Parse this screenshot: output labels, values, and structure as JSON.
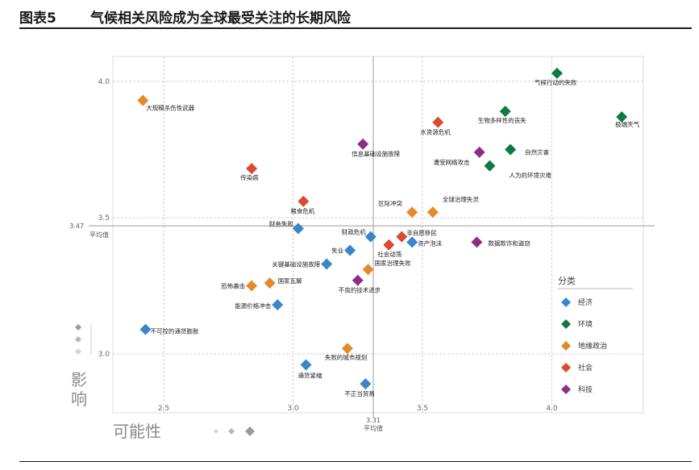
{
  "header": {
    "figure_no": "图表5",
    "title": "气候相关风险成为全球最受关注的长期风险"
  },
  "chart_data": {
    "type": "scatter",
    "xlabel": "可能性",
    "ylabel": "影响",
    "xlim": [
      2.4,
      4.35
    ],
    "ylim": [
      2.8,
      4.1
    ],
    "xticks": [
      "2.5",
      "3.0",
      "3.5",
      "4.0"
    ],
    "yticks": [
      "3.0",
      "3.5",
      "4.0"
    ],
    "x_average": {
      "value": "3.31",
      "label": "平均值"
    },
    "y_average": {
      "value": "3.47",
      "label": "平均值"
    },
    "legend": {
      "title": "分类",
      "placement": "right",
      "items": [
        {
          "key": "economy",
          "label": "经济",
          "color": "#3a86c8"
        },
        {
          "key": "environment",
          "label": "环境",
          "color": "#0e7a3f"
        },
        {
          "key": "geopolitics",
          "label": "地缘政治",
          "color": "#e38a2c"
        },
        {
          "key": "society",
          "label": "社会",
          "color": "#d94a2e"
        },
        {
          "key": "technology",
          "label": "科技",
          "color": "#8b2f86"
        }
      ]
    },
    "points": [
      {
        "label": "气候行动的失败",
        "x": 4.02,
        "y": 4.03,
        "cat": "environment"
      },
      {
        "label": "极端天气",
        "x": 4.27,
        "y": 3.87,
        "cat": "environment"
      },
      {
        "label": "生物多样性的丧失",
        "x": 3.82,
        "y": 3.89,
        "cat": "environment"
      },
      {
        "label": "自然灾害",
        "x": 3.84,
        "y": 3.75,
        "cat": "environment"
      },
      {
        "label": "人为的环境灾难",
        "x": 3.76,
        "y": 3.69,
        "cat": "environment"
      },
      {
        "label": "水资源危机",
        "x": 3.56,
        "y": 3.85,
        "cat": "society"
      },
      {
        "label": "遭受网络攻击",
        "x": 3.72,
        "y": 3.74,
        "cat": "technology"
      },
      {
        "label": "大规模杀伤性武器",
        "x": 2.42,
        "y": 3.93,
        "cat": "geopolitics"
      },
      {
        "label": "信息基础设施故障",
        "x": 3.27,
        "y": 3.77,
        "cat": "technology"
      },
      {
        "label": "传染病",
        "x": 2.84,
        "y": 3.68,
        "cat": "society"
      },
      {
        "label": "粮食危机",
        "x": 3.04,
        "y": 3.56,
        "cat": "society"
      },
      {
        "label": "区际冲突",
        "x": 3.46,
        "y": 3.52,
        "cat": "geopolitics"
      },
      {
        "label": "全球治理失灵",
        "x": 3.54,
        "y": 3.52,
        "cat": "geopolitics"
      },
      {
        "label": "财务失败",
        "x": 3.02,
        "y": 3.46,
        "cat": "economy"
      },
      {
        "label": "财政危机",
        "x": 3.3,
        "y": 3.43,
        "cat": "economy"
      },
      {
        "label": "非自愿移民",
        "x": 3.42,
        "y": 3.43,
        "cat": "society"
      },
      {
        "label": "资产泡沫",
        "x": 3.46,
        "y": 3.41,
        "cat": "economy"
      },
      {
        "label": "社会动荡",
        "x": 3.37,
        "y": 3.4,
        "cat": "society"
      },
      {
        "label": "数据欺诈和盗窃",
        "x": 3.71,
        "y": 3.41,
        "cat": "technology"
      },
      {
        "label": "失业",
        "x": 3.22,
        "y": 3.38,
        "cat": "economy"
      },
      {
        "label": "关键基础设施故障",
        "x": 3.13,
        "y": 3.33,
        "cat": "economy"
      },
      {
        "label": "国家治理失败",
        "x": 3.29,
        "y": 3.31,
        "cat": "geopolitics"
      },
      {
        "label": "不良的技术进步",
        "x": 3.25,
        "y": 3.27,
        "cat": "technology"
      },
      {
        "label": "国家瓦解",
        "x": 2.91,
        "y": 3.26,
        "cat": "geopolitics"
      },
      {
        "label": "恐怖袭击",
        "x": 2.84,
        "y": 3.25,
        "cat": "geopolitics"
      },
      {
        "label": "能源价格冲击",
        "x": 2.94,
        "y": 3.18,
        "cat": "economy"
      },
      {
        "label": "不可控的通货膨胀",
        "x": 2.43,
        "y": 3.09,
        "cat": "economy"
      },
      {
        "label": "失败的城市规划",
        "x": 3.21,
        "y": 3.02,
        "cat": "geopolitics"
      },
      {
        "label": "通货紧缩",
        "x": 3.05,
        "y": 2.96,
        "cat": "economy"
      },
      {
        "label": "不正当贸易",
        "x": 3.28,
        "y": 2.89,
        "cat": "economy"
      }
    ]
  }
}
